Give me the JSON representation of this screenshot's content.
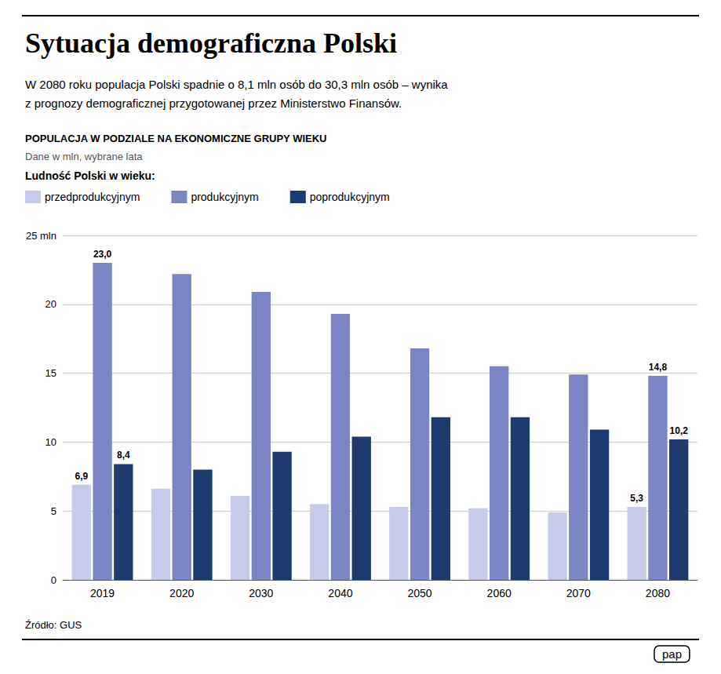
{
  "chart_data": {
    "type": "bar",
    "title": "Sytuacja demograficzna Polski",
    "subtitle": "W 2080 roku populacja Polski spadnie o 8,1 mln osób do 30,3 mln osób – wynika\nz prognozy demograficznej przygotowanej przez Ministerstwo Finansów.",
    "section_title": "POPULACJA W PODZIALE NA EKONOMICZNE GRUPY WIEKU",
    "section_subtitle": "Dane w mln, wybrane lata",
    "legend_title": "Ludność Polski w wieku:",
    "source": "Źródło: GUS",
    "annotations": [
      "pap"
    ],
    "categories": [
      "2019",
      "2020",
      "2030",
      "2040",
      "2050",
      "2060",
      "2070",
      "2080"
    ],
    "series": [
      {
        "name": "przedprodukcyjnym",
        "color": "#c5cbe8",
        "values": [
          6.9,
          6.6,
          6.1,
          5.5,
          5.3,
          5.2,
          4.9,
          5.3
        ],
        "value_labels": [
          "6,9",
          null,
          null,
          null,
          null,
          null,
          null,
          "5,3"
        ]
      },
      {
        "name": "produkcyjnym",
        "color": "#7b85c4",
        "values": [
          23.0,
          22.2,
          20.9,
          19.3,
          16.8,
          15.5,
          14.9,
          14.8
        ],
        "value_labels": [
          "23,0",
          null,
          null,
          null,
          null,
          null,
          null,
          "14,8"
        ]
      },
      {
        "name": "poprodukcyjnym",
        "color": "#1e3a6e",
        "values": [
          8.4,
          8.0,
          9.3,
          10.4,
          11.8,
          11.8,
          10.9,
          10.2
        ],
        "value_labels": [
          "8,4",
          null,
          null,
          null,
          null,
          null,
          null,
          "10,2"
        ]
      }
    ],
    "ylim": [
      0,
      25
    ],
    "yticks": [
      0,
      5,
      10,
      15,
      20,
      {
        "value": 25,
        "label": "25 mln"
      }
    ],
    "grid": true,
    "legend": "top",
    "data_labels": true
  }
}
